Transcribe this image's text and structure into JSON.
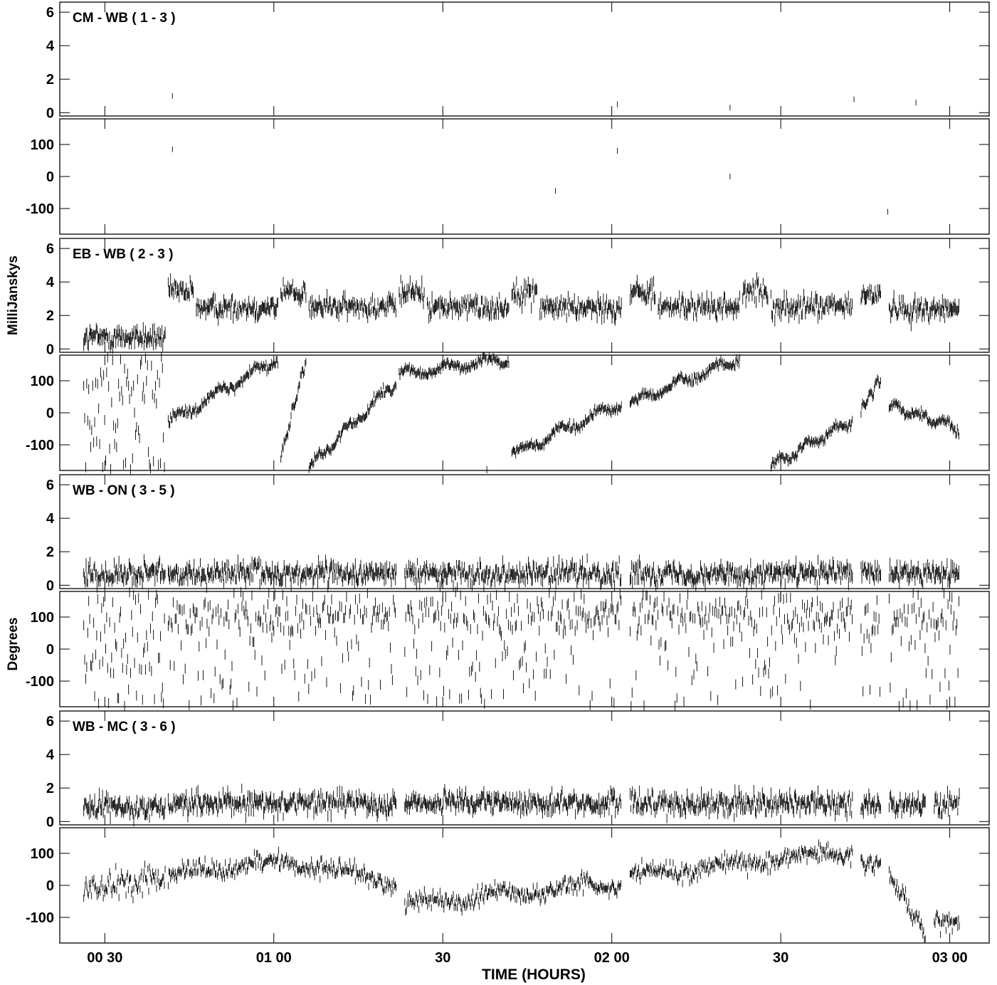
{
  "figure": {
    "xlabel": "TIME (HOURS)",
    "ylabel_amp": "MilliJanskys",
    "ylabel_phase": "Degrees",
    "x_ticks": [
      {
        "value": 30,
        "label": "00 30"
      },
      {
        "value": 60,
        "label": "01 00"
      },
      {
        "value": 90,
        "label": "30"
      },
      {
        "value": 120,
        "label": "02 00"
      },
      {
        "value": 150,
        "label": "30"
      },
      {
        "value": 180,
        "label": "03 00"
      }
    ],
    "amp_ticks": [
      "6",
      "4",
      "2",
      "0"
    ],
    "phase_ticks": [
      "100",
      "0",
      "-100"
    ],
    "ink_color": "#000000"
  },
  "chart_data": [
    {
      "type": "scatter",
      "title": "CM - WB ( 1 - 3 )",
      "xlabel": "TIME (HOURS)",
      "x_unit": "minutes after 00:00",
      "xlim": [
        22,
        187
      ],
      "amp_ylim": [
        -0.2,
        6.6
      ],
      "phase_ylim": [
        -180,
        180
      ],
      "amp_points": [
        [
          42,
          1.0
        ],
        [
          121,
          0.5
        ],
        [
          141,
          0.3
        ],
        [
          163,
          0.8
        ],
        [
          174,
          0.6
        ]
      ],
      "phase_points": [
        [
          42,
          85
        ],
        [
          121,
          80
        ],
        [
          110,
          -45
        ],
        [
          141,
          0
        ],
        [
          169,
          -110
        ]
      ]
    },
    {
      "type": "scatter",
      "title": "EB - WB ( 2 - 3 )",
      "xlabel": "TIME (HOURS)",
      "x_unit": "minutes after 00:00",
      "xlim": [
        22,
        187
      ],
      "amp_ylim": [
        -0.2,
        6.6
      ],
      "phase_ylim": [
        -180,
        180
      ],
      "amp_segments": [
        {
          "x": [
            26,
            41
          ],
          "mean": 0.7
        },
        {
          "x": [
            41,
            46
          ],
          "mean": 3.4
        },
        {
          "x": [
            46,
            61
          ],
          "mean": 2.5
        },
        {
          "x": [
            61,
            66
          ],
          "mean": 3.4
        },
        {
          "x": [
            66,
            82
          ],
          "mean": 2.5
        },
        {
          "x": [
            82,
            87
          ],
          "mean": 3.4
        },
        {
          "x": [
            87,
            102
          ],
          "mean": 2.5
        },
        {
          "x": [
            102,
            107
          ],
          "mean": 3.4
        },
        {
          "x": [
            107,
            122
          ],
          "mean": 2.5
        },
        {
          "x": [
            123,
            128
          ],
          "mean": 3.4
        },
        {
          "x": [
            128,
            143
          ],
          "mean": 2.5
        },
        {
          "x": [
            143,
            148
          ],
          "mean": 3.4
        },
        {
          "x": [
            148,
            163
          ],
          "mean": 2.5
        },
        {
          "x": [
            164,
            168
          ],
          "mean": 3.2
        },
        {
          "x": [
            169,
            182
          ],
          "mean": 2.4
        }
      ],
      "phase_segments": [
        {
          "x": [
            26,
            41
          ],
          "random": true
        },
        {
          "x": [
            41,
            61
          ],
          "start": -30,
          "end": 170
        },
        {
          "x": [
            61,
            66
          ],
          "start": -140,
          "end": 170
        },
        {
          "x": [
            66,
            82
          ],
          "start": -170,
          "end": 100
        },
        {
          "x": [
            82,
            102
          ],
          "start": 120,
          "end": 170
        },
        {
          "x": [
            102,
            122
          ],
          "start": -130,
          "end": 30
        },
        {
          "x": [
            123,
            143
          ],
          "start": 30,
          "end": 170
        },
        {
          "x": [
            148,
            163
          ],
          "start": -170,
          "end": -20
        },
        {
          "x": [
            164,
            168
          ],
          "start": 10,
          "end": 110
        },
        {
          "x": [
            169,
            182
          ],
          "start": 20,
          "end": -50
        }
      ]
    },
    {
      "type": "scatter",
      "title": "WB - ON ( 3 - 5 )",
      "xlabel": "TIME (HOURS)",
      "x_unit": "minutes after 00:00",
      "xlim": [
        22,
        187
      ],
      "amp_ylim": [
        -0.2,
        6.6
      ],
      "phase_ylim": [
        -180,
        180
      ],
      "amp_segments": [
        {
          "x": [
            26,
            41
          ],
          "mean": 0.7
        },
        {
          "x": [
            41,
            82
          ],
          "mean": 0.7
        },
        {
          "x": [
            83,
            122
          ],
          "mean": 0.7
        },
        {
          "x": [
            123,
            163
          ],
          "mean": 0.7
        },
        {
          "x": [
            164,
            168
          ],
          "mean": 0.7
        },
        {
          "x": [
            169,
            182
          ],
          "mean": 0.7
        }
      ],
      "phase_segments": [
        {
          "x": [
            26,
            41
          ],
          "random": true
        },
        {
          "x": [
            41,
            82
          ],
          "random": true,
          "bias": 110
        },
        {
          "x": [
            83,
            122
          ],
          "random": true,
          "bias": 110
        },
        {
          "x": [
            123,
            163
          ],
          "random": true,
          "bias": 110
        },
        {
          "x": [
            164,
            168
          ],
          "random": true,
          "bias": 60
        },
        {
          "x": [
            169,
            182
          ],
          "random": true,
          "bias": 100
        }
      ]
    },
    {
      "type": "scatter",
      "title": "WB - MC ( 3 - 6 )",
      "xlabel": "TIME (HOURS)",
      "x_unit": "minutes after 00:00",
      "xlim": [
        22,
        187
      ],
      "amp_ylim": [
        -0.2,
        6.6
      ],
      "phase_ylim": [
        -180,
        180
      ],
      "amp_segments": [
        {
          "x": [
            26,
            41
          ],
          "mean": 0.9
        },
        {
          "x": [
            41,
            82
          ],
          "mean": 1.1
        },
        {
          "x": [
            83,
            122
          ],
          "mean": 1.1
        },
        {
          "x": [
            123,
            163
          ],
          "mean": 1.1
        },
        {
          "x": [
            164,
            168
          ],
          "mean": 1.0
        },
        {
          "x": [
            169,
            176
          ],
          "mean": 1.0
        },
        {
          "x": [
            177,
            182
          ],
          "mean": 1.0
        }
      ],
      "phase_segments": [
        {
          "x": [
            26,
            41
          ],
          "start": -20,
          "end": 30,
          "noise": 60
        },
        {
          "x": [
            41,
            82
          ],
          "start": 20,
          "end": 0,
          "hump": 60,
          "noise": 40
        },
        {
          "x": [
            83,
            122
          ],
          "start": -60,
          "end": 10,
          "noise": 40
        },
        {
          "x": [
            123,
            163
          ],
          "start": 30,
          "end": 110,
          "noise": 40
        },
        {
          "x": [
            164,
            168
          ],
          "start": 60,
          "end": 80,
          "noise": 40
        },
        {
          "x": [
            169,
            176
          ],
          "start": 30,
          "end": -150,
          "noise": 40
        },
        {
          "x": [
            177,
            182
          ],
          "start": -120,
          "end": -110,
          "noise": 40
        }
      ]
    }
  ]
}
